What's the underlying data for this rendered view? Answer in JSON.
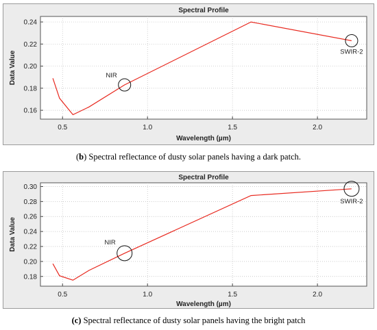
{
  "captions": [
    {
      "prefix": "(",
      "letter": "b",
      "rest": ") Spectral reflectance of dusty solar panels having a dark patch."
    },
    {
      "prefix": "",
      "letter": "(c)",
      "rest": " Spectral reflectance of dusty solar panels having the bright patch"
    }
  ],
  "chart_data": [
    {
      "type": "line",
      "title": "Spectral Profile",
      "xlabel": "Wavelength (µm)",
      "ylabel": "Data Value",
      "xlim": [
        0.37,
        2.29
      ],
      "ylim": [
        0.152,
        0.245
      ],
      "xticks": [
        0.5,
        1.0,
        1.5,
        2.0
      ],
      "xtick_labels": [
        "0.5",
        "1.0",
        "1.5",
        "2.0"
      ],
      "yticks": [
        0.16,
        0.18,
        0.2,
        0.22,
        0.24
      ],
      "ytick_labels": [
        "0.16",
        "0.18",
        "0.20",
        "0.22",
        "0.24"
      ],
      "grid": true,
      "line_color": "#e8281e",
      "series": [
        {
          "x": [
            0.443,
            0.482,
            0.561,
            0.655,
            0.865,
            1.609,
            2.201
          ],
          "y": [
            0.189,
            0.171,
            0.156,
            0.163,
            0.183,
            0.24,
            0.223
          ]
        }
      ],
      "annotations": [
        {
          "label": "NIR",
          "x": 0.865,
          "y": 0.183
        },
        {
          "label": "SWIR-2",
          "x": 2.201,
          "y": 0.223
        }
      ]
    },
    {
      "type": "line",
      "title": "Spectral Profile",
      "xlabel": "Wavelength (µm)",
      "ylabel": "Data Value",
      "xlim": [
        0.37,
        2.29
      ],
      "ylim": [
        0.167,
        0.305
      ],
      "xticks": [
        0.5,
        1.0,
        1.5,
        2.0
      ],
      "xtick_labels": [
        "0.5",
        "1.0",
        "1.5",
        "2.0"
      ],
      "yticks": [
        0.18,
        0.2,
        0.22,
        0.24,
        0.26,
        0.28,
        0.3
      ],
      "ytick_labels": [
        "0.18",
        "0.20",
        "0.22",
        "0.24",
        "0.26",
        "0.28",
        "0.30"
      ],
      "grid": true,
      "line_color": "#e8281e",
      "series": [
        {
          "x": [
            0.443,
            0.482,
            0.561,
            0.655,
            0.865,
            1.609,
            2.201
          ],
          "y": [
            0.197,
            0.181,
            0.175,
            0.188,
            0.211,
            0.288,
            0.297
          ]
        }
      ],
      "annotations": [
        {
          "label": "NIR",
          "x": 0.865,
          "y": 0.211
        },
        {
          "label": "SWIR-2",
          "x": 2.201,
          "y": 0.297
        }
      ]
    }
  ]
}
